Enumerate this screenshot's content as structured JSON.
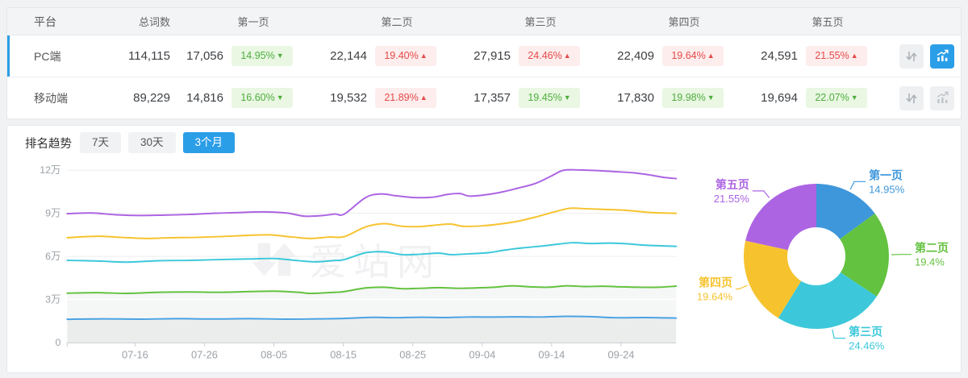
{
  "table": {
    "headers": {
      "platform": "平台",
      "total": "总词数",
      "pages": [
        "第一页",
        "第二页",
        "第三页",
        "第四页",
        "第五页"
      ]
    },
    "rows": [
      {
        "platform": "PC端",
        "total": "114,115",
        "selected": true,
        "chart_active": true,
        "pages": [
          {
            "count": "17,056",
            "pct": "14.95%",
            "dir": "down"
          },
          {
            "count": "22,144",
            "pct": "19.40%",
            "dir": "up"
          },
          {
            "count": "27,915",
            "pct": "24.46%",
            "dir": "up"
          },
          {
            "count": "22,409",
            "pct": "19.64%",
            "dir": "up"
          },
          {
            "count": "24,591",
            "pct": "21.55%",
            "dir": "up"
          }
        ]
      },
      {
        "platform": "移动端",
        "total": "89,229",
        "selected": false,
        "chart_active": false,
        "pages": [
          {
            "count": "14,816",
            "pct": "16.60%",
            "dir": "down"
          },
          {
            "count": "19,532",
            "pct": "21.89%",
            "dir": "up"
          },
          {
            "count": "17,357",
            "pct": "19.45%",
            "dir": "down"
          },
          {
            "count": "17,830",
            "pct": "19.98%",
            "dir": "down"
          },
          {
            "count": "19,694",
            "pct": "22.07%",
            "dir": "down"
          }
        ]
      }
    ]
  },
  "trend": {
    "label": "排名趋势",
    "tabs": [
      {
        "label": "7天",
        "active": false
      },
      {
        "label": "30天",
        "active": false
      },
      {
        "label": "3个月",
        "active": true
      }
    ]
  },
  "watermark": "爱站网",
  "colors": {
    "accent_blue": "#2b9ee8",
    "badge_green_text": "#4fae3d",
    "badge_green_bg": "#e9f7e3",
    "badge_red_text": "#e64949",
    "badge_red_bg": "#fdeded",
    "page1": "#3e97db",
    "page2": "#63c23f",
    "page3": "#3cc8da",
    "page4": "#f6c32f",
    "page5": "#ac64e3"
  },
  "chart_data": [
    {
      "type": "line",
      "title": "排名趋势 3个月",
      "note": "stacked cumulative keyword-count lines for PC端, values in 万 (10k)",
      "x_ticks": [
        "07-16",
        "07-26",
        "08-05",
        "08-15",
        "08-25",
        "09-04",
        "09-14",
        "09-24"
      ],
      "y_ticks": [
        "0",
        "3万",
        "6万",
        "9万",
        "12万"
      ],
      "ylim_wan": [
        0,
        13
      ],
      "grid": true,
      "legend": "none",
      "series": [
        {
          "name": "第一页",
          "color": "#4aa3e4",
          "area": true,
          "points": [
            [
              0,
              1.62
            ],
            [
              0.06,
              1.65
            ],
            [
              0.12,
              1.63
            ],
            [
              0.18,
              1.66
            ],
            [
              0.24,
              1.64
            ],
            [
              0.3,
              1.66
            ],
            [
              0.36,
              1.63
            ],
            [
              0.42,
              1.65
            ],
            [
              0.455,
              1.68
            ],
            [
              0.5,
              1.75
            ],
            [
              0.54,
              1.73
            ],
            [
              0.58,
              1.76
            ],
            [
              0.62,
              1.74
            ],
            [
              0.66,
              1.78
            ],
            [
              0.7,
              1.77
            ],
            [
              0.74,
              1.79
            ],
            [
              0.78,
              1.78
            ],
            [
              0.82,
              1.82
            ],
            [
              0.86,
              1.8
            ],
            [
              0.9,
              1.73
            ],
            [
              0.95,
              1.74
            ],
            [
              1,
              1.7
            ]
          ]
        },
        {
          "name": "第二页",
          "color": "#63c23f",
          "area": true,
          "points": [
            [
              0,
              3.44
            ],
            [
              0.05,
              3.47
            ],
            [
              0.1,
              3.42
            ],
            [
              0.15,
              3.5
            ],
            [
              0.2,
              3.52
            ],
            [
              0.25,
              3.5
            ],
            [
              0.3,
              3.55
            ],
            [
              0.34,
              3.58
            ],
            [
              0.38,
              3.5
            ],
            [
              0.4,
              3.42
            ],
            [
              0.44,
              3.5
            ],
            [
              0.455,
              3.55
            ],
            [
              0.49,
              3.8
            ],
            [
              0.52,
              3.85
            ],
            [
              0.55,
              3.75
            ],
            [
              0.58,
              3.78
            ],
            [
              0.61,
              3.82
            ],
            [
              0.64,
              3.78
            ],
            [
              0.67,
              3.8
            ],
            [
              0.7,
              3.85
            ],
            [
              0.73,
              3.95
            ],
            [
              0.76,
              3.88
            ],
            [
              0.79,
              3.85
            ],
            [
              0.82,
              3.95
            ],
            [
              0.85,
              3.9
            ],
            [
              0.88,
              3.92
            ],
            [
              0.91,
              3.88
            ],
            [
              0.94,
              3.85
            ],
            [
              0.97,
              3.85
            ],
            [
              1,
              3.93
            ]
          ]
        },
        {
          "name": "第三页",
          "color": "#3cc8da",
          "area": false,
          "points": [
            [
              0,
              5.72
            ],
            [
              0.05,
              5.68
            ],
            [
              0.1,
              5.6
            ],
            [
              0.15,
              5.7
            ],
            [
              0.2,
              5.72
            ],
            [
              0.25,
              5.78
            ],
            [
              0.3,
              5.82
            ],
            [
              0.34,
              5.85
            ],
            [
              0.38,
              5.7
            ],
            [
              0.41,
              5.62
            ],
            [
              0.44,
              5.72
            ],
            [
              0.455,
              5.78
            ],
            [
              0.49,
              6.25
            ],
            [
              0.52,
              6.32
            ],
            [
              0.55,
              6.12
            ],
            [
              0.58,
              6.15
            ],
            [
              0.61,
              6.22
            ],
            [
              0.63,
              6.12
            ],
            [
              0.66,
              6.18
            ],
            [
              0.69,
              6.25
            ],
            [
              0.72,
              6.45
            ],
            [
              0.75,
              6.6
            ],
            [
              0.78,
              6.72
            ],
            [
              0.8,
              6.82
            ],
            [
              0.83,
              6.95
            ],
            [
              0.86,
              6.9
            ],
            [
              0.89,
              6.93
            ],
            [
              0.92,
              6.88
            ],
            [
              0.95,
              6.78
            ],
            [
              1,
              6.7
            ]
          ]
        },
        {
          "name": "第四页",
          "color": "#f6c32f",
          "area": false,
          "points": [
            [
              0,
              7.3
            ],
            [
              0.05,
              7.4
            ],
            [
              0.09,
              7.32
            ],
            [
              0.13,
              7.25
            ],
            [
              0.17,
              7.3
            ],
            [
              0.21,
              7.32
            ],
            [
              0.25,
              7.38
            ],
            [
              0.29,
              7.45
            ],
            [
              0.33,
              7.5
            ],
            [
              0.37,
              7.35
            ],
            [
              0.4,
              7.25
            ],
            [
              0.43,
              7.35
            ],
            [
              0.455,
              7.38
            ],
            [
              0.49,
              8.05
            ],
            [
              0.52,
              8.28
            ],
            [
              0.55,
              8.1
            ],
            [
              0.58,
              8.08
            ],
            [
              0.61,
              8.2
            ],
            [
              0.63,
              8.25
            ],
            [
              0.65,
              8.1
            ],
            [
              0.68,
              8.12
            ],
            [
              0.71,
              8.25
            ],
            [
              0.74,
              8.45
            ],
            [
              0.77,
              8.75
            ],
            [
              0.8,
              9.1
            ],
            [
              0.825,
              9.35
            ],
            [
              0.85,
              9.32
            ],
            [
              0.88,
              9.28
            ],
            [
              0.92,
              9.2
            ],
            [
              0.96,
              9.05
            ],
            [
              1,
              9.0
            ]
          ]
        },
        {
          "name": "第五页",
          "color": "#ac64e3",
          "area": false,
          "points": [
            [
              0,
              8.97
            ],
            [
              0.04,
              9.02
            ],
            [
              0.08,
              8.9
            ],
            [
              0.12,
              8.85
            ],
            [
              0.16,
              8.88
            ],
            [
              0.2,
              8.92
            ],
            [
              0.24,
              9.0
            ],
            [
              0.28,
              9.05
            ],
            [
              0.32,
              9.1
            ],
            [
              0.36,
              9.02
            ],
            [
              0.39,
              8.8
            ],
            [
              0.42,
              8.85
            ],
            [
              0.44,
              8.95
            ],
            [
              0.455,
              8.95
            ],
            [
              0.49,
              10.1
            ],
            [
              0.515,
              10.35
            ],
            [
              0.54,
              10.22
            ],
            [
              0.57,
              10.1
            ],
            [
              0.6,
              10.12
            ],
            [
              0.625,
              10.32
            ],
            [
              0.645,
              10.38
            ],
            [
              0.66,
              10.2
            ],
            [
              0.685,
              10.28
            ],
            [
              0.71,
              10.45
            ],
            [
              0.74,
              10.75
            ],
            [
              0.77,
              11.1
            ],
            [
              0.795,
              11.6
            ],
            [
              0.815,
              12.0
            ],
            [
              0.84,
              12.02
            ],
            [
              0.87,
              11.98
            ],
            [
              0.9,
              11.9
            ],
            [
              0.93,
              11.82
            ],
            [
              0.96,
              11.65
            ],
            [
              0.98,
              11.5
            ],
            [
              1,
              11.42
            ]
          ]
        }
      ]
    },
    {
      "type": "pie",
      "donut": true,
      "title": "PC端 各页占比",
      "slices": [
        {
          "label": "第一页",
          "value": 14.95,
          "pct_label": "14.95%",
          "color": "#3e97db"
        },
        {
          "label": "第二页",
          "value": 19.4,
          "pct_label": "19.4%",
          "color": "#63c23f"
        },
        {
          "label": "第三页",
          "value": 24.46,
          "pct_label": "24.46%",
          "color": "#3cc8da"
        },
        {
          "label": "第四页",
          "value": 19.64,
          "pct_label": "19.64%",
          "color": "#f6c32f"
        },
        {
          "label": "第五页",
          "value": 21.55,
          "pct_label": "21.55%",
          "color": "#ac64e3"
        }
      ]
    }
  ]
}
